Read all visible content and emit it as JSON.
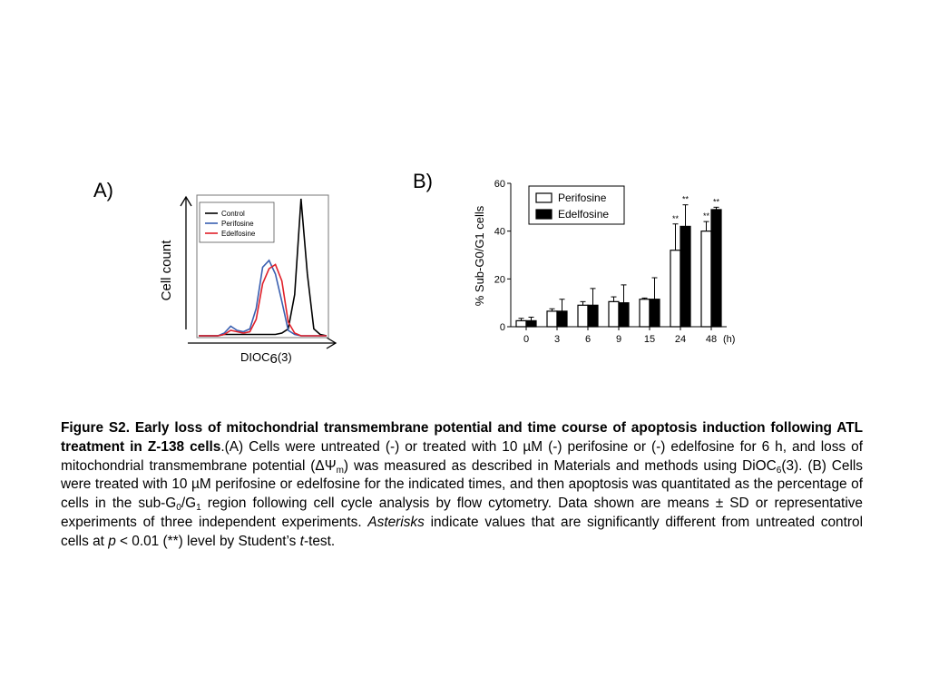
{
  "chart_data": [
    {
      "type": "line",
      "panel_label": "A)",
      "xlabel": "DIOC6(3)",
      "xlabel_main": "DIOC",
      "xlabel_sub": "6",
      "xlabel_tail": "(3)",
      "ylabel": "Cell count",
      "legend": [
        {
          "name": "Control",
          "color": "#000000"
        },
        {
          "name": "Perifosine",
          "color": "#3a5fb0"
        },
        {
          "name": "Edelfosine",
          "color": "#e0202a"
        }
      ],
      "legend_position": "top-left",
      "x": [
        0,
        0.05,
        0.1,
        0.15,
        0.2,
        0.25,
        0.3,
        0.35,
        0.4,
        0.45,
        0.5,
        0.55,
        0.6,
        0.65,
        0.7,
        0.75,
        0.8,
        0.85,
        0.9,
        0.95,
        1
      ],
      "series": [
        {
          "name": "Control",
          "values": [
            0,
            0,
            0,
            0,
            0.01,
            0.01,
            0.01,
            0.01,
            0.01,
            0.01,
            0.01,
            0.01,
            0.01,
            0.02,
            0.05,
            0.3,
            1.0,
            0.45,
            0.05,
            0.01,
            0
          ]
        },
        {
          "name": "Perifosine",
          "values": [
            0,
            0,
            0,
            0,
            0.02,
            0.07,
            0.04,
            0.03,
            0.05,
            0.2,
            0.5,
            0.55,
            0.45,
            0.25,
            0.04,
            0.01,
            0,
            0,
            0,
            0,
            0
          ]
        },
        {
          "name": "Edelfosine",
          "values": [
            0,
            0,
            0,
            0,
            0.01,
            0.04,
            0.03,
            0.02,
            0.03,
            0.12,
            0.38,
            0.49,
            0.52,
            0.4,
            0.1,
            0.02,
            0,
            0,
            0,
            0,
            0
          ]
        }
      ]
    },
    {
      "type": "bar",
      "panel_label": "B)",
      "ylabel": "% Sub-G0/G1 cells",
      "xunit": "(h)",
      "categories": [
        "0",
        "3",
        "6",
        "9",
        "15",
        "24",
        "48"
      ],
      "ylim": [
        0,
        60
      ],
      "yticks": [
        "0",
        "20",
        "40",
        "60"
      ],
      "legend_position": "top-left",
      "series": [
        {
          "name": "Perifosine",
          "fill": "#ffffff",
          "values": [
            2.5,
            6.5,
            9,
            10.5,
            11.5,
            32,
            40
          ],
          "errors": [
            1,
            1,
            1.5,
            2,
            0.5,
            11,
            4
          ]
        },
        {
          "name": "Edelfosine",
          "fill": "#000000",
          "values": [
            2.5,
            6.5,
            9,
            10,
            11.5,
            42,
            49
          ],
          "errors": [
            1.5,
            5,
            7,
            7.5,
            9,
            9,
            1
          ]
        }
      ],
      "annotations": [
        {
          "category": "24",
          "series": "Perifosine",
          "text": "**"
        },
        {
          "category": "24",
          "series": "Edelfosine",
          "text": "**"
        },
        {
          "category": "48",
          "series": "Perifosine",
          "text": "**"
        },
        {
          "category": "48",
          "series": "Edelfosine",
          "text": "**"
        }
      ]
    }
  ],
  "caption": {
    "bold": "Figure S2. Early loss of mitochondrial transmembrane potential and time course of apoptosis induction following ATL treatment in Z-138 cells",
    "t1": ".(A) Cells were untreated (-) or treated with 10 µM (-) perifosine or (-) edelfosine for 6 h, and loss of mitochondrial transmembrane potential (ΔΨ",
    "s1": "m",
    "t2": ") was measured as described in Materials and methods using DiOC",
    "s2": "6",
    "t3": "(3). (B) Cells were treated with 10 µM perifosine or edelfosine for the indicated times, and then apoptosis was quantitated as the percentage of cells in the sub-G",
    "s3": "0",
    "t4": "/G",
    "s4": "1",
    "t5": " region following cell cycle analysis by flow cytometry. Data shown are means ± SD or representative experiments of three independent experiments. ",
    "i1": "Asterisks",
    "t6": " indicate values that are significantly different from untreated control cells at ",
    "i2": "p",
    "t7": " < 0.01 (**) level by Student’s ",
    "i3": "t",
    "t8": "-test."
  }
}
